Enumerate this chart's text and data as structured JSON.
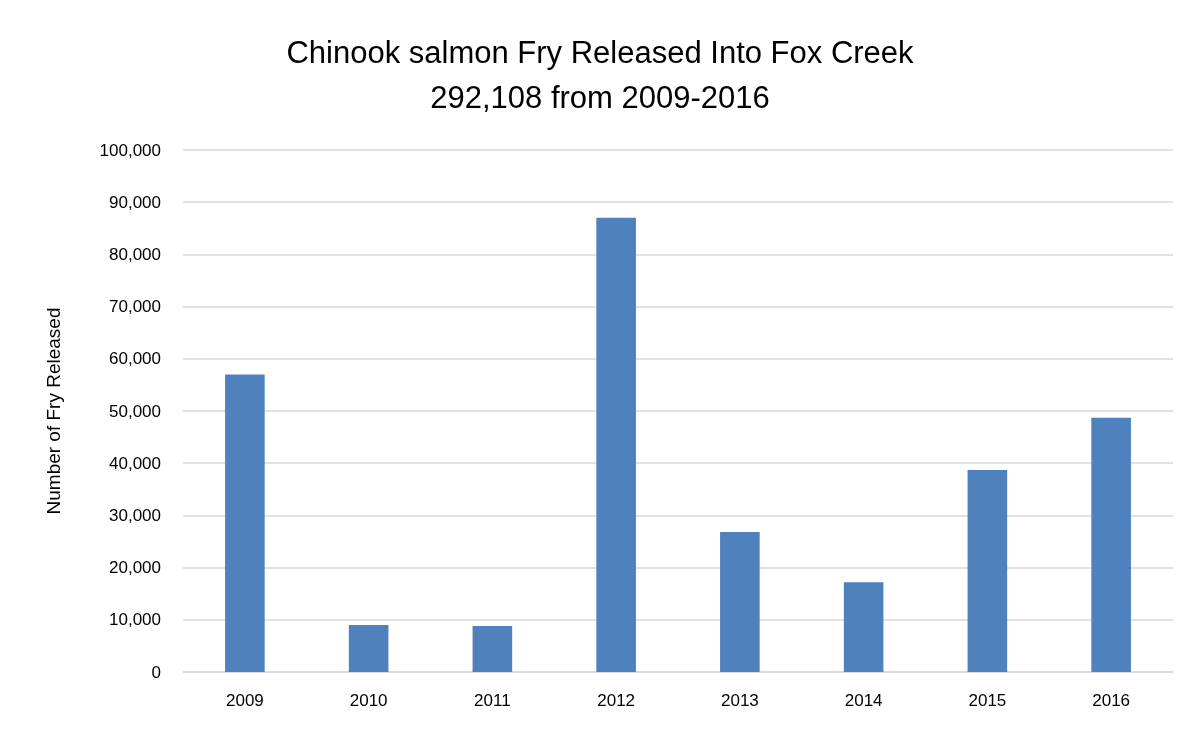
{
  "chart_data": {
    "type": "bar",
    "title": "Chinook salmon Fry Released Into Fox Creek",
    "subtitle": "292,108 from 2009-2016",
    "ylabel": "Number of Fry Released",
    "categories": [
      "2009",
      "2010",
      "2011",
      "2012",
      "2013",
      "2014",
      "2015",
      "2016"
    ],
    "values": [
      57000,
      9000,
      8800,
      87000,
      26800,
      17200,
      38700,
      48700
    ],
    "color": "#4f81bd",
    "ylim": [
      0,
      100000
    ],
    "yticks": [
      {
        "value": 0,
        "label": "0"
      },
      {
        "value": 10000,
        "label": "10,000"
      },
      {
        "value": 20000,
        "label": "20,000"
      },
      {
        "value": 30000,
        "label": "30,000"
      },
      {
        "value": 40000,
        "label": "40,000"
      },
      {
        "value": 50000,
        "label": "50,000"
      },
      {
        "value": 60000,
        "label": "60,000"
      },
      {
        "value": 70000,
        "label": "70,000"
      },
      {
        "value": 80000,
        "label": "80,000"
      },
      {
        "value": 90000,
        "label": "90,000"
      },
      {
        "value": 100000,
        "label": "100,000"
      }
    ],
    "grid": "y"
  }
}
